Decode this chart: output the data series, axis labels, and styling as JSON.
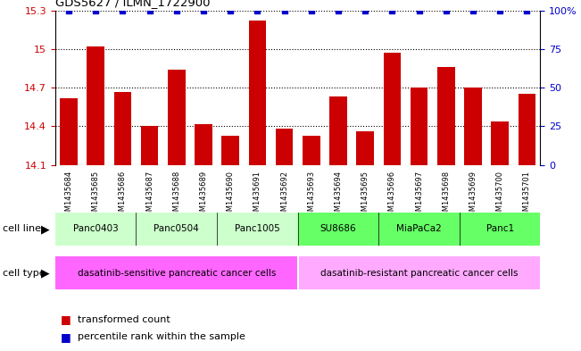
{
  "title": "GDS5627 / ILMN_1722900",
  "samples": [
    "GSM1435684",
    "GSM1435685",
    "GSM1435686",
    "GSM1435687",
    "GSM1435688",
    "GSM1435689",
    "GSM1435690",
    "GSM1435691",
    "GSM1435692",
    "GSM1435693",
    "GSM1435694",
    "GSM1435695",
    "GSM1435696",
    "GSM1435697",
    "GSM1435698",
    "GSM1435699",
    "GSM1435700",
    "GSM1435701"
  ],
  "values": [
    14.62,
    15.02,
    14.67,
    14.4,
    14.84,
    14.42,
    14.33,
    15.22,
    14.38,
    14.33,
    14.63,
    14.36,
    14.97,
    14.7,
    14.86,
    14.7,
    14.44,
    14.65
  ],
  "bar_color": "#cc0000",
  "dot_color": "#0000cc",
  "ylim_left": [
    14.1,
    15.3
  ],
  "ylim_right": [
    0,
    100
  ],
  "yticks_left": [
    14.1,
    14.4,
    14.7,
    15.0,
    15.3
  ],
  "yticks_right": [
    0,
    25,
    50,
    75,
    100
  ],
  "ytick_labels_left": [
    "14.1",
    "14.4",
    "14.7",
    "15",
    "15.3"
  ],
  "ytick_labels_right": [
    "0",
    "25",
    "50",
    "75",
    "100%"
  ],
  "cell_lines": [
    {
      "name": "Panc0403",
      "start": 0,
      "end": 2,
      "color": "#ccffcc"
    },
    {
      "name": "Panc0504",
      "start": 3,
      "end": 5,
      "color": "#ccffcc"
    },
    {
      "name": "Panc1005",
      "start": 6,
      "end": 8,
      "color": "#ccffcc"
    },
    {
      "name": "SU8686",
      "start": 9,
      "end": 11,
      "color": "#66ff66"
    },
    {
      "name": "MiaPaCa2",
      "start": 12,
      "end": 14,
      "color": "#66ff66"
    },
    {
      "name": "Panc1",
      "start": 15,
      "end": 17,
      "color": "#66ff66"
    }
  ],
  "cell_types": [
    {
      "name": "dasatinib-sensitive pancreatic cancer cells",
      "start": 0,
      "end": 8,
      "color": "#ff66ff"
    },
    {
      "name": "dasatinib-resistant pancreatic cancer cells",
      "start": 9,
      "end": 17,
      "color": "#ffaaff"
    }
  ],
  "legend_items": [
    {
      "label": "transformed count",
      "color": "#cc0000"
    },
    {
      "label": "percentile rank within the sample",
      "color": "#0000cc"
    }
  ],
  "background_color": "#ffffff",
  "tick_label_color_left": "#cc0000",
  "tick_label_color_right": "#0000cc",
  "grey_bg": "#d0d0d0"
}
